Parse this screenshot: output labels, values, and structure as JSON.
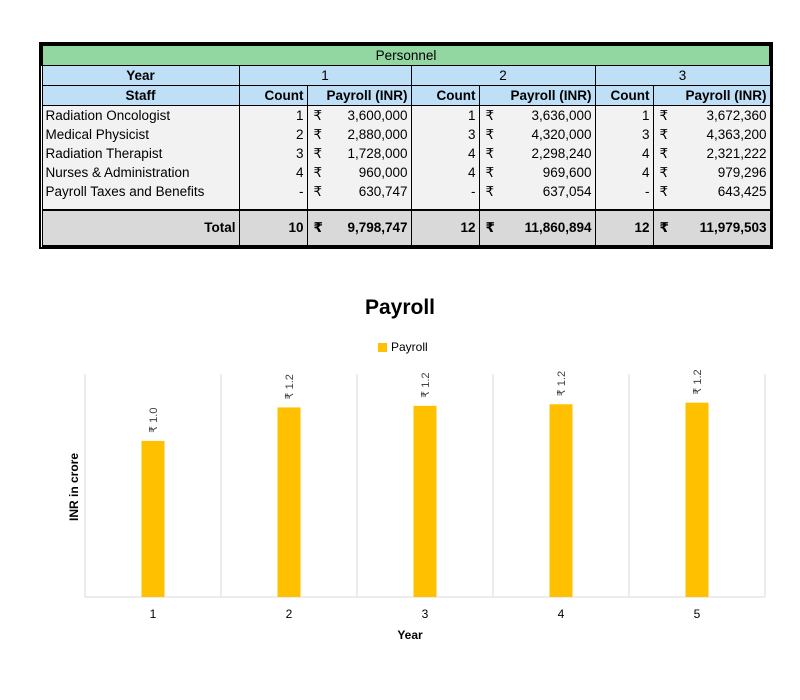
{
  "table": {
    "title": "Personnel",
    "year_label": "Year",
    "years": [
      "1",
      "2",
      "3"
    ],
    "staff_label": "Staff",
    "count_label": "Count",
    "payroll_label": "Payroll  (INR)",
    "currency": "₹",
    "rows": [
      {
        "staff": "Radiation Oncologist",
        "y1_count": "1",
        "y1_payroll": "3,600,000",
        "y2_count": "1",
        "y2_payroll": "3,636,000",
        "y3_count": "1",
        "y3_payroll": "3,672,360"
      },
      {
        "staff": "Medical Physicist",
        "y1_count": "2",
        "y1_payroll": "2,880,000",
        "y2_count": "3",
        "y2_payroll": "4,320,000",
        "y3_count": "3",
        "y3_payroll": "4,363,200"
      },
      {
        "staff": "Radiation Therapist",
        "y1_count": "3",
        "y1_payroll": "1,728,000",
        "y2_count": "4",
        "y2_payroll": "2,298,240",
        "y3_count": "4",
        "y3_payroll": "2,321,222"
      },
      {
        "staff": "Nurses & Administration",
        "y1_count": "4",
        "y1_payroll": "960,000",
        "y2_count": "4",
        "y2_payroll": "969,600",
        "y3_count": "4",
        "y3_payroll": "979,296"
      },
      {
        "staff": "Payroll Taxes and Benefits",
        "y1_count": "-",
        "y1_payroll": "630,747",
        "y2_count": "-",
        "y2_payroll": "637,054",
        "y3_count": "-",
        "y3_payroll": "643,425"
      }
    ],
    "total": {
      "label": "Total",
      "y1_count": "10",
      "y1_payroll": "9,798,747",
      "y2_count": "12",
      "y2_payroll": "11,860,894",
      "y3_count": "12",
      "y3_payroll": "11,979,503"
    }
  },
  "chart_data": {
    "type": "bar",
    "title": "Payroll",
    "xlabel": "Year",
    "ylabel": "INR in crore",
    "categories": [
      "1",
      "2",
      "3",
      "4",
      "5"
    ],
    "series": [
      {
        "name": "Payroll",
        "values": [
          0.98,
          1.19,
          1.2,
          1.21,
          1.22
        ],
        "labels": [
          "₹ 1.0",
          "₹ 1.2",
          "₹ 1.2",
          "₹ 1.2",
          "₹ 1.2"
        ]
      }
    ],
    "ylim": [
      0,
      1.4
    ],
    "grid": "vertical",
    "legend": "top-center",
    "bar_color": "#ffc000"
  }
}
